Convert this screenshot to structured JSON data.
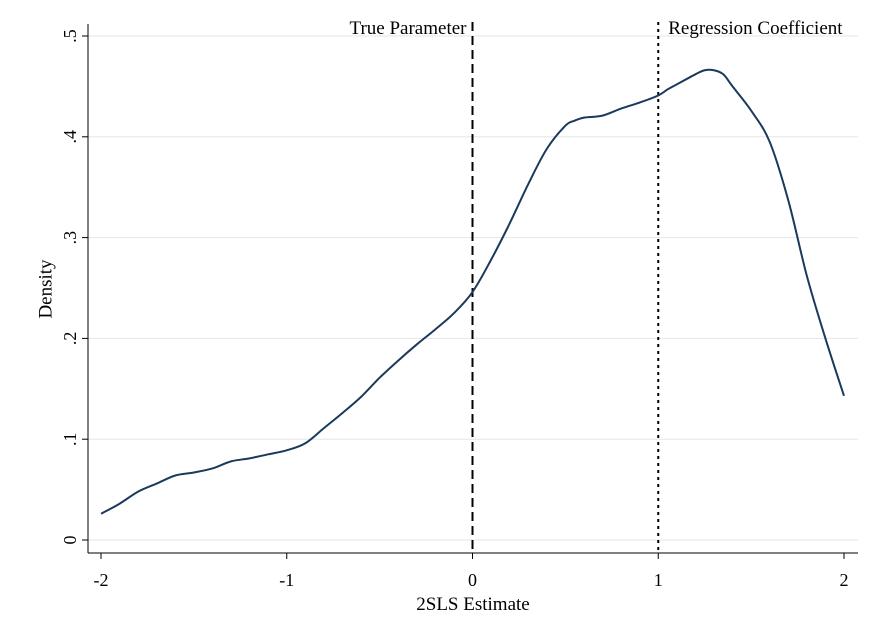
{
  "chart_data": {
    "type": "line",
    "xlabel": "2SLS Estimate",
    "ylabel": "Density",
    "xlim": [
      -2.07,
      2.07
    ],
    "ylim": [
      0,
      0.5
    ],
    "x_ticks": [
      -2,
      -1,
      0,
      1,
      2
    ],
    "x_tick_labels": [
      "-2",
      "-1",
      "0",
      "1",
      "2"
    ],
    "y_ticks": [
      0,
      0.1,
      0.2,
      0.3,
      0.4,
      0.5
    ],
    "y_tick_labels": [
      "0",
      ".1",
      ".2",
      ".3",
      ".4",
      ".5"
    ],
    "grid": "horizontal",
    "line_color": "#1a3a5c",
    "reference_lines": [
      {
        "x": 0,
        "label": "True Parameter",
        "style": "dashed"
      },
      {
        "x": 1,
        "label": "Regression Coefficient",
        "style": "dotted"
      }
    ],
    "series": [
      {
        "x": [
          -2.0,
          -1.9,
          -1.8,
          -1.7,
          -1.6,
          -1.5,
          -1.4,
          -1.3,
          -1.2,
          -1.1,
          -1.0,
          -0.9,
          -0.8,
          -0.7,
          -0.6,
          -0.5,
          -0.4,
          -0.3,
          -0.2,
          -0.1,
          0.0,
          0.1,
          0.2,
          0.3,
          0.4,
          0.5,
          0.55,
          0.6,
          0.7,
          0.8,
          0.9,
          1.0,
          1.05,
          1.1,
          1.2,
          1.25,
          1.3,
          1.35,
          1.4,
          1.5,
          1.6,
          1.7,
          1.8,
          1.9,
          2.0
        ],
        "y": [
          0.026,
          0.036,
          0.048,
          0.056,
          0.064,
          0.067,
          0.071,
          0.078,
          0.081,
          0.085,
          0.089,
          0.096,
          0.111,
          0.126,
          0.142,
          0.161,
          0.178,
          0.194,
          0.209,
          0.225,
          0.246,
          0.278,
          0.314,
          0.353,
          0.388,
          0.411,
          0.416,
          0.419,
          0.421,
          0.428,
          0.434,
          0.441,
          0.447,
          0.452,
          0.462,
          0.466,
          0.466,
          0.462,
          0.45,
          0.426,
          0.395,
          0.337,
          0.262,
          0.2,
          0.143
        ]
      }
    ]
  }
}
